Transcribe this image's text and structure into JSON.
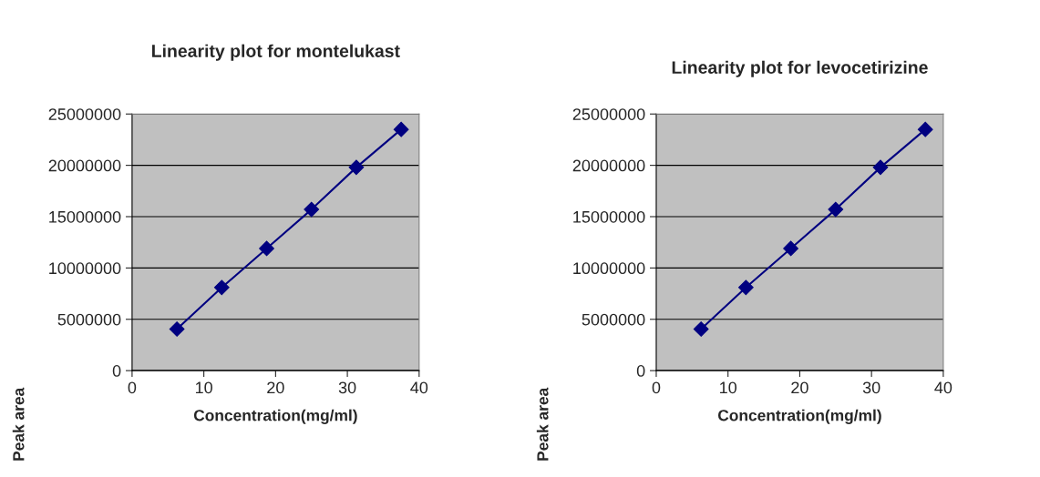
{
  "chart_data": [
    {
      "type": "line",
      "title": "Linearity plot for montelukast",
      "xlabel": "Concentration(mg/ml)",
      "ylabel": "Peak area",
      "x": [
        6.25,
        12.5,
        18.75,
        25,
        31.25,
        37.5
      ],
      "series": [
        {
          "color": "#000080",
          "values": [
            4050000,
            8100000,
            11900000,
            15700000,
            19800000,
            23500000
          ]
        }
      ],
      "xlim": [
        0,
        40
      ],
      "xticks": [
        0,
        10,
        20,
        30,
        40
      ],
      "ylim": [
        0,
        25000000
      ],
      "yticks": [
        0,
        5000000,
        10000000,
        15000000,
        20000000,
        25000000
      ],
      "grid": "y",
      "marker": "diamond",
      "line_style": "solid",
      "legend": false
    },
    {
      "type": "line",
      "title": "Linearity plot for levocetirizine",
      "xlabel": "Concentration(mg/ml)",
      "ylabel": "Peak area",
      "x": [
        6.25,
        12.5,
        18.75,
        25,
        31.25,
        37.5
      ],
      "series": [
        {
          "color": "#000080",
          "values": [
            4050000,
            8100000,
            11900000,
            15700000,
            19800000,
            23500000
          ]
        }
      ],
      "xlim": [
        0,
        40
      ],
      "xticks": [
        0,
        10,
        20,
        30,
        40
      ],
      "ylim": [
        0,
        25000000
      ],
      "yticks": [
        0,
        5000000,
        10000000,
        15000000,
        20000000,
        25000000
      ],
      "grid": "y",
      "marker": "diamond",
      "line_style": "solid",
      "legend": false
    }
  ]
}
